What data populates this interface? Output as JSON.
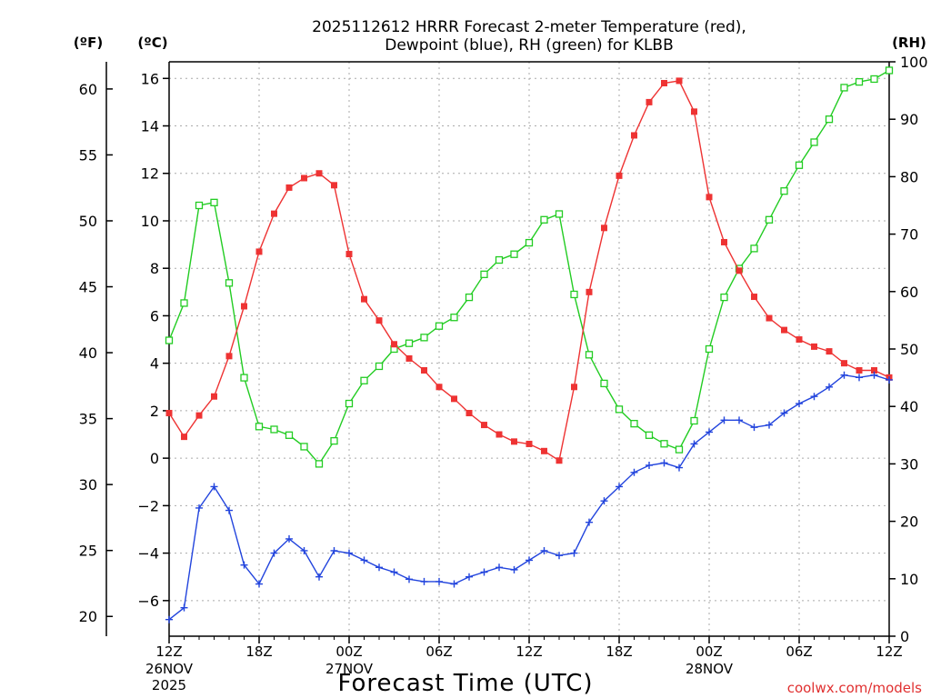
{
  "chart_data": {
    "type": "line",
    "title_lines": [
      "2025112612 HRRR Forecast 2-meter Temperature (red),",
      "Dewpoint (blue), RH (green) for KLBB"
    ],
    "xlabel": "Forecast Time (UTC)",
    "credit": "coolwx.com/models",
    "x_ticks": [
      {
        "hour": 0,
        "label": "12Z",
        "sub": [
          "26NOV",
          "2025"
        ]
      },
      {
        "hour": 6,
        "label": "18Z",
        "sub": []
      },
      {
        "hour": 12,
        "label": "00Z",
        "sub": [
          "27NOV"
        ]
      },
      {
        "hour": 18,
        "label": "06Z",
        "sub": []
      },
      {
        "hour": 24,
        "label": "12Z",
        "sub": []
      },
      {
        "hour": 30,
        "label": "18Z",
        "sub": []
      },
      {
        "hour": 36,
        "label": "00Z",
        "sub": [
          "28NOV"
        ]
      },
      {
        "hour": 42,
        "label": "06Z",
        "sub": []
      },
      {
        "hour": 48,
        "label": "12Z",
        "sub": []
      }
    ],
    "xlim": [
      0,
      48
    ],
    "axes": {
      "fahrenheit": {
        "label": "(ºF)",
        "ticks": [
          20,
          25,
          30,
          35,
          40,
          45,
          50,
          55,
          60
        ]
      },
      "celsius": {
        "label": "(ºC)",
        "ticks": [
          -6,
          -4,
          -2,
          0,
          2,
          4,
          6,
          8,
          10,
          12,
          14,
          16
        ],
        "ylim": [
          -7.5,
          16.7
        ]
      },
      "rh": {
        "label": "(RH)",
        "ticks": [
          0,
          10,
          20,
          30,
          40,
          50,
          60,
          70,
          80,
          90,
          100
        ],
        "ylim": [
          0,
          100
        ]
      }
    },
    "grid": true,
    "colors": {
      "temperature": "#ee3333",
      "dewpoint": "#2244dd",
      "rh": "#22cc22"
    },
    "series": [
      {
        "key": "temperature",
        "axis": "celsius",
        "marker": "filled-square",
        "values": [
          1.9,
          0.9,
          1.8,
          2.6,
          4.3,
          6.4,
          8.7,
          10.3,
          11.4,
          11.8,
          12.0,
          11.5,
          8.6,
          6.7,
          5.8,
          4.8,
          4.2,
          3.7,
          3.0,
          2.5,
          1.9,
          1.4,
          1.0,
          0.7,
          0.6,
          0.3,
          -0.1,
          3.0,
          7.0,
          9.7,
          11.9,
          13.6,
          15.0,
          15.8,
          15.9,
          14.6,
          11.0,
          9.1,
          7.9,
          6.8,
          5.9,
          5.4,
          5.0,
          4.7,
          4.5,
          4.0,
          3.7,
          3.7,
          3.4
        ]
      },
      {
        "key": "dewpoint",
        "axis": "celsius",
        "marker": "plus",
        "values": [
          -6.8,
          -6.3,
          -2.1,
          -1.2,
          -2.2,
          -4.5,
          -5.3,
          -4.0,
          -3.4,
          -3.9,
          -5.0,
          -3.9,
          -4.0,
          -4.3,
          -4.6,
          -4.8,
          -5.1,
          -5.2,
          -5.2,
          -5.3,
          -5.0,
          -4.8,
          -4.6,
          -4.7,
          -4.3,
          -3.9,
          -4.1,
          -4.0,
          -2.7,
          -1.8,
          -1.2,
          -0.6,
          -0.3,
          -0.2,
          -0.4,
          0.6,
          1.1,
          1.6,
          1.6,
          1.3,
          1.4,
          1.9,
          2.3,
          2.6,
          3.0,
          3.5,
          3.4,
          3.5,
          3.3
        ]
      },
      {
        "key": "rh",
        "axis": "rh",
        "marker": "open-square",
        "values": [
          51.5,
          58.0,
          75.0,
          75.5,
          61.5,
          45.0,
          36.5,
          36.0,
          35.0,
          33.0,
          30.0,
          34.0,
          40.5,
          44.5,
          47.0,
          50.0,
          51.0,
          52.0,
          54.0,
          55.5,
          59.0,
          63.0,
          65.5,
          66.5,
          68.5,
          72.5,
          73.5,
          59.5,
          49.0,
          44.0,
          39.5,
          37.0,
          35.0,
          33.5,
          32.5,
          37.5,
          50.0,
          59.0,
          64.0,
          67.5,
          72.5,
          77.5,
          82.0,
          86.0,
          90.0,
          95.5,
          96.5,
          97.0,
          98.5
        ]
      }
    ]
  }
}
